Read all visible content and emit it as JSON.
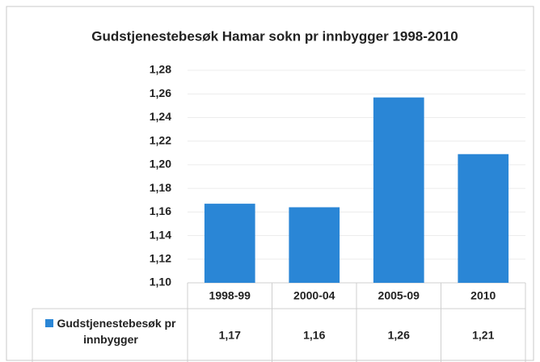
{
  "chart_data": {
    "type": "bar",
    "title": "Gudstjenestebesøk Hamar sokn pr innbygger 1998-2010",
    "categories": [
      "1998-99",
      "2000-04",
      "2005-09",
      "2010"
    ],
    "series": [
      {
        "name": "Gudstjenestebesøk pr innbygger",
        "color": "#2a86d6",
        "values": [
          1.167,
          1.164,
          1.257,
          1.209
        ],
        "value_labels": [
          "1,17",
          "1,16",
          "1,26",
          "1,21"
        ]
      }
    ],
    "ylim": [
      1.1,
      1.28
    ],
    "yticks": [
      {
        "value": 1.1,
        "label": "1,10"
      },
      {
        "value": 1.12,
        "label": "1,12"
      },
      {
        "value": 1.14,
        "label": "1,14"
      },
      {
        "value": 1.16,
        "label": "1,16"
      },
      {
        "value": 1.18,
        "label": "1,18"
      },
      {
        "value": 1.2,
        "label": "1,20"
      },
      {
        "value": 1.22,
        "label": "1,22"
      },
      {
        "value": 1.24,
        "label": "1,24"
      },
      {
        "value": 1.26,
        "label": "1,26"
      },
      {
        "value": 1.28,
        "label": "1,28"
      }
    ],
    "grid": true
  }
}
